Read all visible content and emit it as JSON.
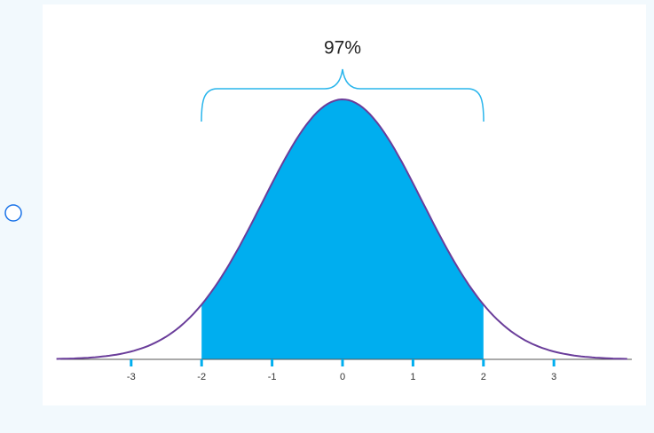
{
  "option": {
    "image": {
      "label": "97%",
      "ticks": [
        -3,
        -2,
        -1,
        0,
        1,
        2,
        3
      ]
    }
  }
}
